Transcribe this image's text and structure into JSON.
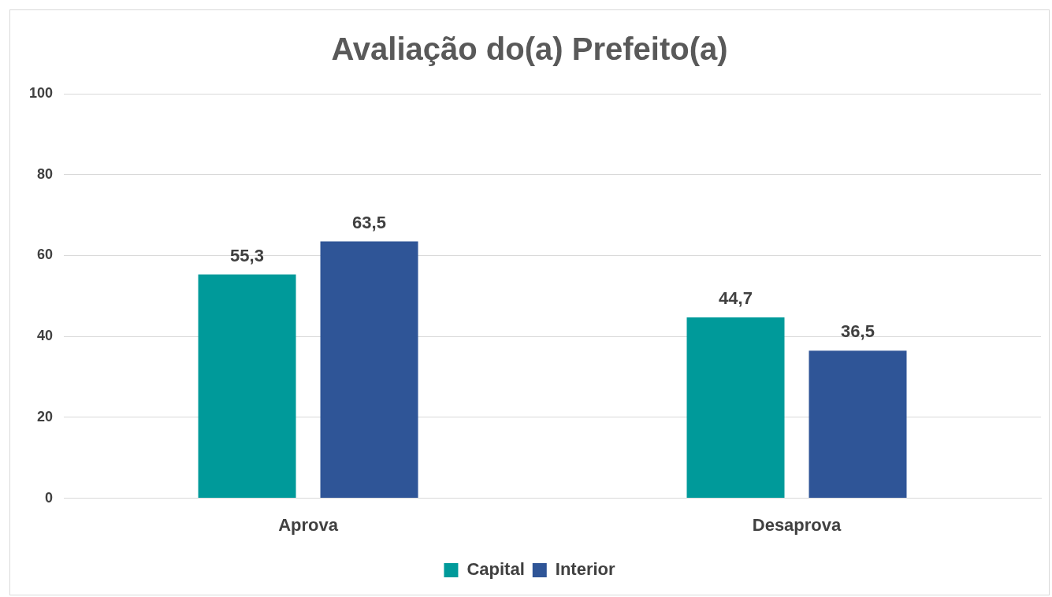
{
  "chart_data": {
    "type": "bar",
    "title": "Avaliação do(a) Prefeito(a)",
    "categories": [
      "Aprova",
      "Desaprova"
    ],
    "series": [
      {
        "name": "Capital",
        "color": "#009a9a",
        "values": [
          55.3,
          44.7
        ],
        "value_labels": [
          "55,3",
          "44,7"
        ]
      },
      {
        "name": "Interior",
        "color": "#2f5597",
        "values": [
          63.5,
          36.5
        ],
        "value_labels": [
          "63,5",
          "36,5"
        ]
      }
    ],
    "ylim": [
      0,
      100
    ],
    "yticks": [
      0,
      20,
      40,
      60,
      80,
      100
    ],
    "grid": "y",
    "legend": "bottom"
  }
}
